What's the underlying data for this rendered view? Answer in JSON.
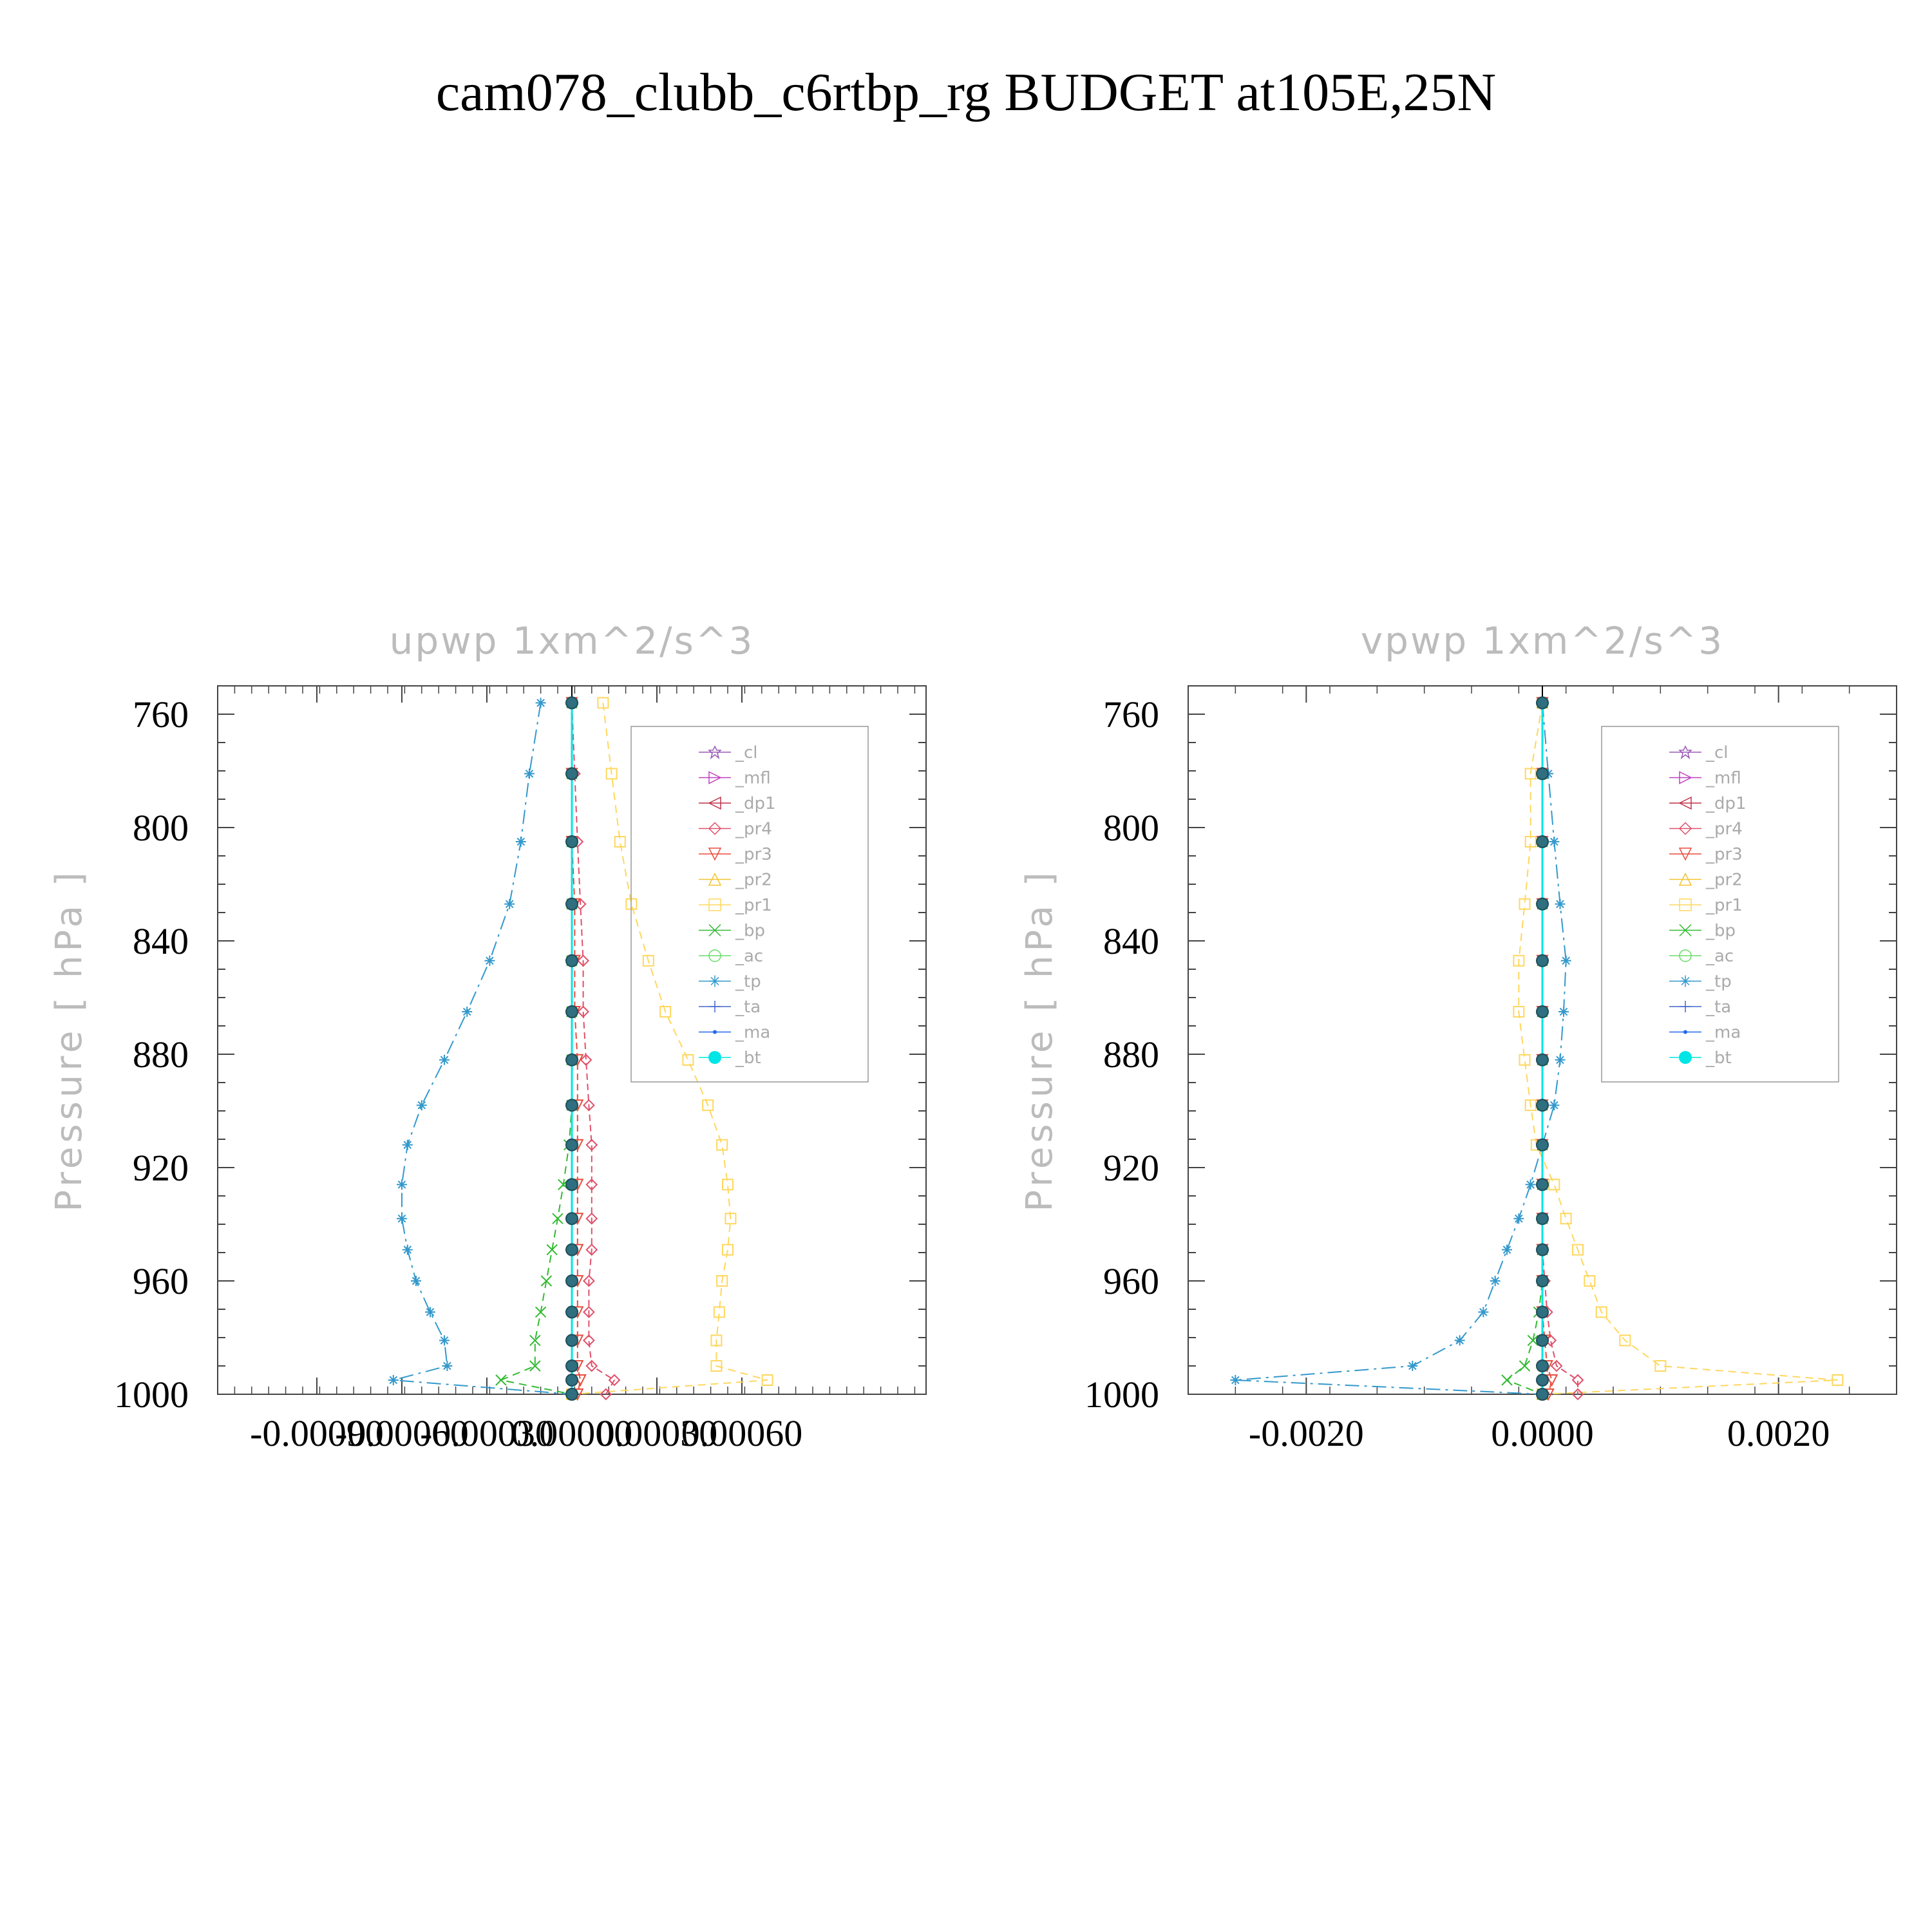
{
  "title": "cam078_clubb_c6rtbp_rg  BUDGET at105E,25N",
  "colors": {
    "_cl": "#9b59b6",
    "_mfl": "#c040c0",
    "_dp1": "#c0304a",
    "_pr4": "#e0506a",
    "_pr3": "#e84c3c",
    "_pr2": "#f4c430",
    "_pr1": "#ffd75e",
    "_bp": "#33bb33",
    "_ac": "#66dd66",
    "_tp": "#3399cc",
    "_ta": "#4466cc",
    "_ma": "#2266ee",
    "_bt": "#00e5e5"
  },
  "legend": [
    "_cl",
    "_mfl",
    "_dp1",
    "_pr4",
    "_pr3",
    "_pr2",
    "_pr1",
    "_bp",
    "_ac",
    "_tp",
    "_ta",
    "_ma",
    "_bt"
  ],
  "chart_data": [
    {
      "type": "line",
      "title": "upwp    1xm^2/s^3",
      "ylabel": "Pressure  [ hPa ]",
      "xlim": [
        -0.00125,
        0.00125
      ],
      "ylim": [
        1000,
        750
      ],
      "xticks": [
        -0.0009,
        -0.0006,
        -0.0003,
        0.0,
        0.0003,
        0.0006
      ],
      "xtick_labels": [
        "-0.00090",
        "-0.00060",
        "-0.00030",
        "0.00000",
        "0.00030",
        "0.00060"
      ],
      "yticks": [
        760,
        800,
        840,
        880,
        920,
        960,
        1000
      ],
      "levels": [
        756,
        781,
        805,
        827,
        847,
        865,
        882,
        898,
        912,
        926,
        938,
        949,
        960,
        971,
        981,
        990,
        995,
        1000
      ],
      "series": [
        {
          "name": "_tp",
          "values": [
            -0.00011,
            -0.00015,
            -0.00018,
            -0.00022,
            -0.00029,
            -0.00037,
            -0.00045,
            -0.00053,
            -0.00058,
            -0.0006,
            -0.0006,
            -0.00058,
            -0.00055,
            -0.0005,
            -0.00045,
            -0.00044,
            -0.00063,
            0.0
          ]
        },
        {
          "name": "_bp",
          "values": [
            0.0,
            0.0,
            0.0,
            0.0,
            0.0,
            0.0,
            0.0,
            0.0,
            -1e-05,
            -3e-05,
            -5e-05,
            -7e-05,
            -9e-05,
            -0.00011,
            -0.00013,
            -0.00013,
            -0.00025,
            0.0
          ]
        },
        {
          "name": "_pr1",
          "values": [
            0.00011,
            0.00014,
            0.00017,
            0.00021,
            0.00027,
            0.00033,
            0.00041,
            0.00048,
            0.00053,
            0.00055,
            0.00056,
            0.00055,
            0.00053,
            0.00052,
            0.00051,
            0.00051,
            0.00069,
            0.0
          ]
        },
        {
          "name": "_pr4",
          "values": [
            0.0,
            1e-05,
            2e-05,
            3e-05,
            4e-05,
            4e-05,
            5e-05,
            6e-05,
            7e-05,
            7e-05,
            7e-05,
            7e-05,
            6e-05,
            6e-05,
            6e-05,
            7e-05,
            0.00015,
            0.00012
          ]
        },
        {
          "name": "_pr3",
          "values": [
            0.0,
            0.0,
            0.0,
            1e-05,
            1e-05,
            1e-05,
            2e-05,
            2e-05,
            2e-05,
            2e-05,
            2e-05,
            2e-05,
            2e-05,
            2e-05,
            2e-05,
            2e-05,
            3e-05,
            2e-05
          ]
        },
        {
          "name": "_dp1",
          "values": [
            0.0,
            0.0,
            0.0,
            0.0,
            0.0,
            0.0,
            0.0,
            0.0,
            0.0,
            0.0,
            0.0,
            0.0,
            0.0,
            0.0,
            0.0,
            0.0,
            0.0,
            0.0
          ]
        },
        {
          "name": "_bt",
          "values": [
            0.0,
            0.0,
            0.0,
            0.0,
            0.0,
            0.0,
            0.0,
            0.0,
            0.0,
            0.0,
            0.0,
            0.0,
            0.0,
            0.0,
            0.0,
            0.0,
            0.0,
            0.0
          ]
        }
      ]
    },
    {
      "type": "line",
      "title": "vpwp    1xm^2/s^3",
      "ylabel": "Pressure  [ hPa ]",
      "xlim": [
        -0.003,
        0.003
      ],
      "ylim": [
        1000,
        750
      ],
      "xticks": [
        -0.002,
        0.0,
        0.002
      ],
      "xtick_labels": [
        "-0.0020",
        "0.0000",
        "0.0020"
      ],
      "yticks": [
        760,
        800,
        840,
        880,
        920,
        960,
        1000
      ],
      "levels": [
        756,
        781,
        805,
        827,
        847,
        865,
        882,
        898,
        912,
        926,
        938,
        949,
        960,
        971,
        981,
        990,
        995,
        1000
      ],
      "series": [
        {
          "name": "_tp",
          "values": [
            0.0,
            5e-05,
            0.0001,
            0.00015,
            0.0002,
            0.00018,
            0.00015,
            0.0001,
            0.0,
            -0.0001,
            -0.0002,
            -0.0003,
            -0.0004,
            -0.0005,
            -0.0007,
            -0.0011,
            -0.0026,
            0.0
          ]
        },
        {
          "name": "_pr1",
          "values": [
            0.0,
            -0.0001,
            -0.0001,
            -0.00015,
            -0.0002,
            -0.0002,
            -0.00015,
            -0.0001,
            -5e-05,
            0.0001,
            0.0002,
            0.0003,
            0.0004,
            0.0005,
            0.0007,
            0.001,
            0.0025,
            0.0
          ]
        },
        {
          "name": "_bp",
          "values": [
            0.0,
            0.0,
            0.0,
            0.0,
            0.0,
            0.0,
            0.0,
            0.0,
            0.0,
            0.0,
            0.0,
            0.0,
            0.0,
            -3e-05,
            -8e-05,
            -0.00015,
            -0.0003,
            0.0
          ]
        },
        {
          "name": "_pr4",
          "values": [
            0.0,
            0.0,
            0.0,
            0.0,
            0.0,
            0.0,
            0.0,
            0.0,
            0.0,
            0.0,
            0.0,
            0.0,
            2e-05,
            4e-05,
            7e-05,
            0.00012,
            0.0003,
            0.0003
          ]
        },
        {
          "name": "_pr3",
          "values": [
            0.0,
            0.0,
            0.0,
            0.0,
            0.0,
            0.0,
            0.0,
            0.0,
            0.0,
            0.0,
            0.0,
            0.0,
            0.0,
            0.0,
            2e-05,
            4e-05,
            8e-05,
            5e-05
          ]
        },
        {
          "name": "_bt",
          "values": [
            0.0,
            0.0,
            0.0,
            0.0,
            0.0,
            0.0,
            0.0,
            0.0,
            0.0,
            0.0,
            0.0,
            0.0,
            0.0,
            0.0,
            0.0,
            0.0,
            0.0,
            0.0
          ]
        }
      ]
    }
  ]
}
